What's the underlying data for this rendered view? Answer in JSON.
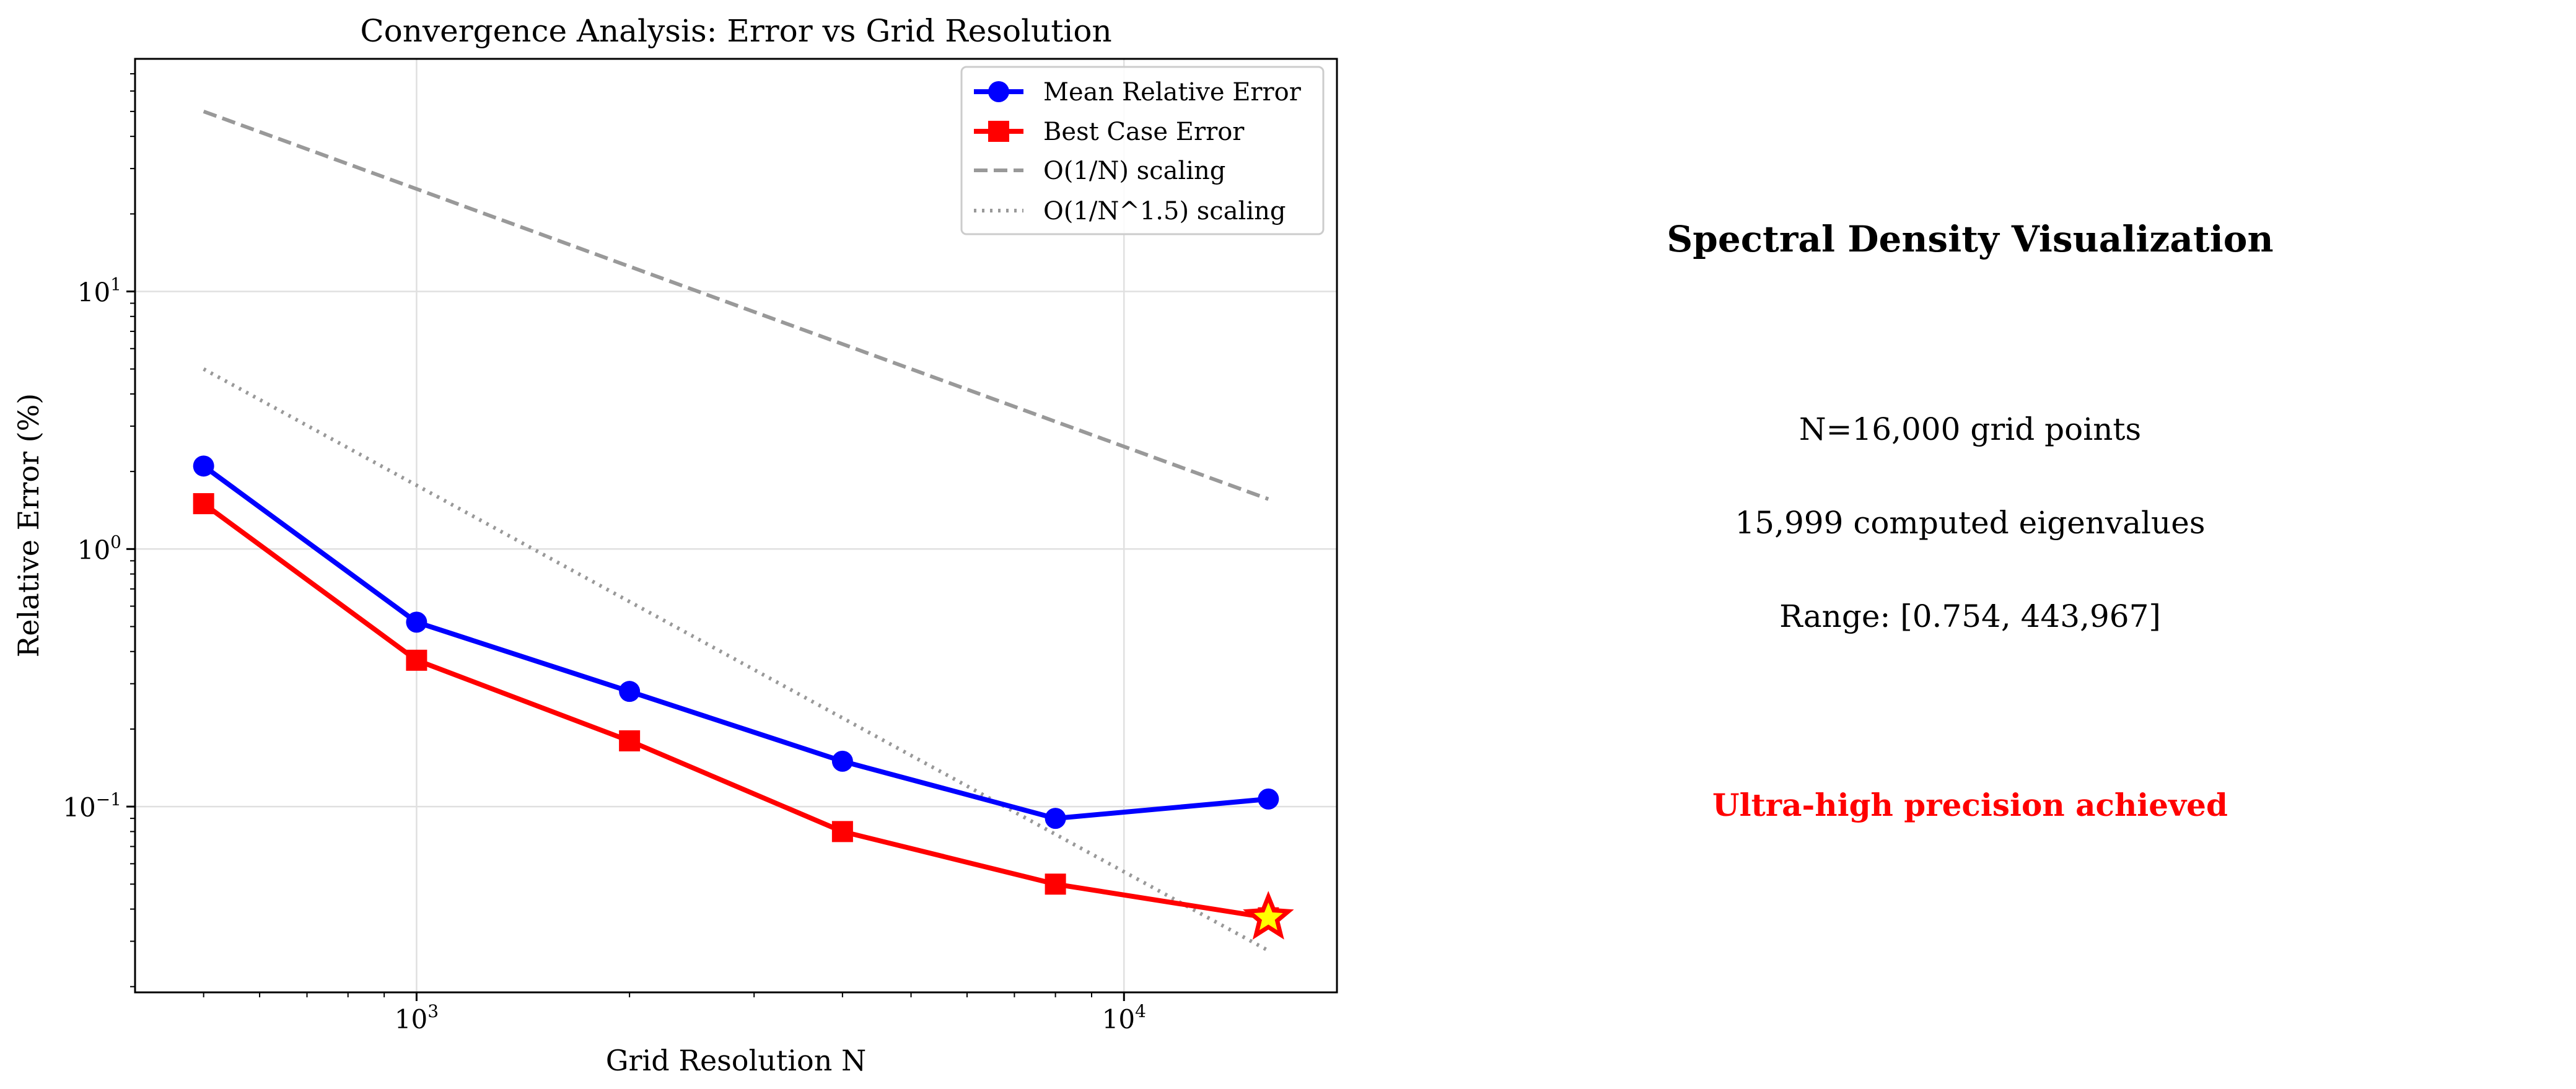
{
  "chart_data": {
    "type": "line",
    "title": "Convergence Analysis: Error vs Grid Resolution",
    "xlabel": "Grid Resolution N",
    "ylabel": "Relative Error (%)",
    "xscale": "log",
    "yscale": "log",
    "xlim": [
      400,
      20000
    ],
    "ylim": [
      0.019,
      80
    ],
    "grid": true,
    "legend_position": "top-right",
    "x_ticks": [
      {
        "base": "10",
        "exp": "3",
        "value": 1000
      },
      {
        "base": "10",
        "exp": "4",
        "value": 10000
      }
    ],
    "y_ticks": [
      {
        "base": "10",
        "exp": "1",
        "value": 10
      },
      {
        "base": "10",
        "exp": "0",
        "value": 1
      },
      {
        "base": "10",
        "exp": "−1",
        "value": 0.1
      }
    ],
    "series": [
      {
        "name": "Mean Relative Error",
        "color": "#0000ff",
        "marker": "circle",
        "style": "solid",
        "x": [
          500,
          1000,
          2000,
          4000,
          8000,
          16000
        ],
        "y": [
          2.1,
          0.52,
          0.28,
          0.15,
          0.09,
          0.107
        ]
      },
      {
        "name": "Best Case Error",
        "color": "#ff0000",
        "marker": "square",
        "style": "solid",
        "x": [
          500,
          1000,
          2000,
          4000,
          8000,
          16000
        ],
        "y": [
          1.5,
          0.37,
          0.18,
          0.08,
          0.05,
          0.037
        ]
      },
      {
        "name": "O(1/N) scaling",
        "color": "#999999",
        "marker": "none",
        "style": "dashed",
        "x": [
          500,
          16000
        ],
        "y": [
          50,
          1.5625
        ]
      },
      {
        "name": "O(1/N^1.5) scaling",
        "color": "#999999",
        "marker": "none",
        "style": "dotted",
        "x": [
          500,
          16000
        ],
        "y": [
          5,
          0.0276
        ]
      }
    ],
    "highlight": {
      "x": 16000,
      "y": 0.037,
      "marker": "star",
      "color": "#ffff00",
      "edge_color": "#ff0000"
    }
  },
  "info_panel": {
    "title": "Spectral Density Visualization",
    "grid_points": "N=16,000 grid points",
    "eigenvalues": "15,999 computed eigenvalues",
    "range": "Range: [0.754, 443,967]",
    "note": "Ultra-high precision achieved",
    "note_color": "#ff0000"
  }
}
